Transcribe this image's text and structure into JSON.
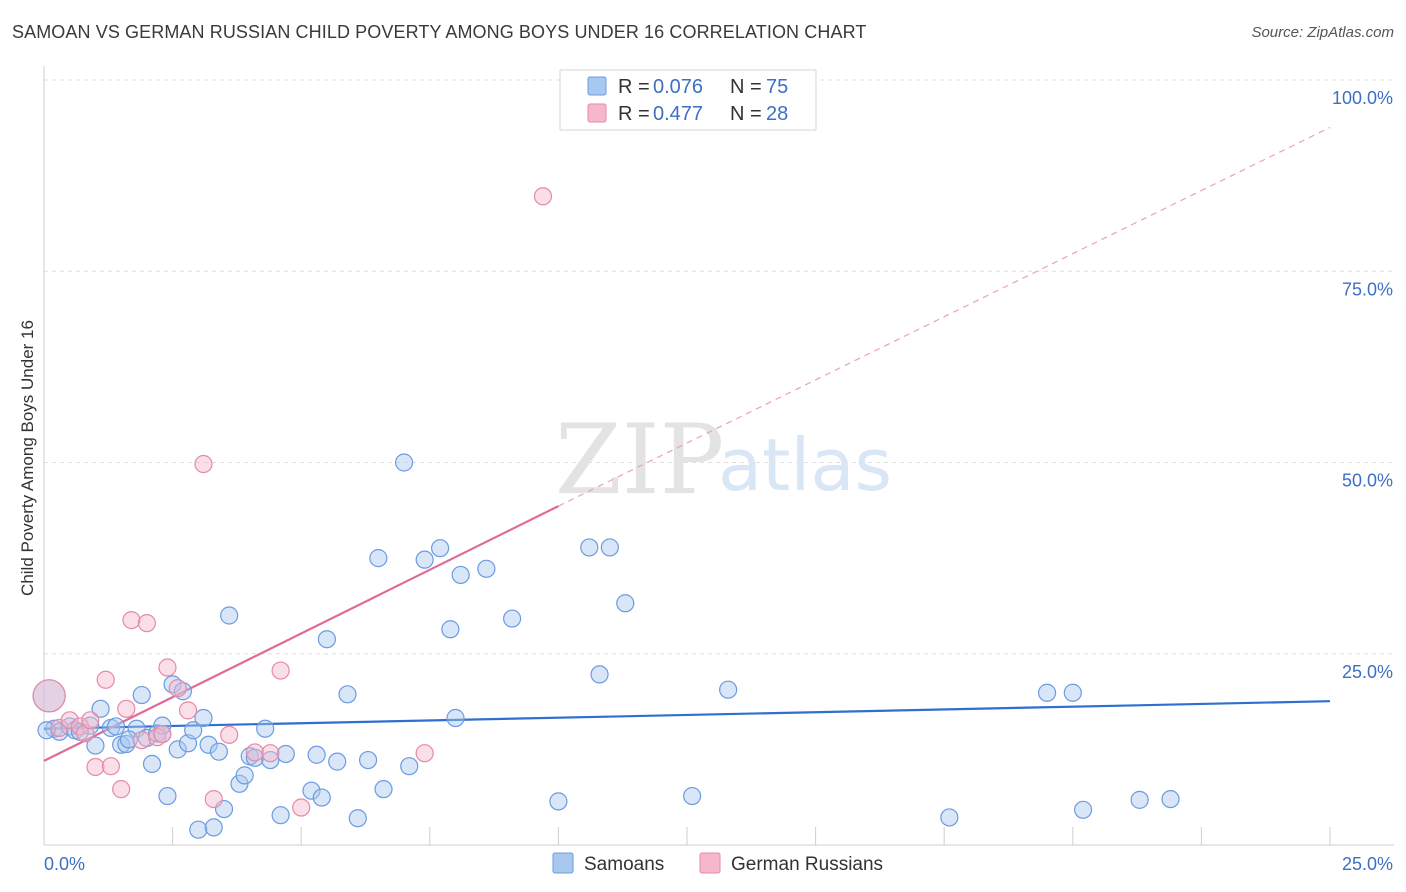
{
  "header": {
    "title": "SAMOAN VS GERMAN RUSSIAN CHILD POVERTY AMONG BOYS UNDER 16 CORRELATION CHART",
    "source": "Source: ZipAtlas.com"
  },
  "watermark": {
    "part1": "ZIP",
    "part2": "atlas"
  },
  "legend": {
    "rows": [
      {
        "r_label": "R = ",
        "r_value": "0.076",
        "n_label": "N = ",
        "n_value": "75",
        "color": "#a9c8ef"
      },
      {
        "r_label": "R = ",
        "r_value": "0.477",
        "n_label": "N = ",
        "n_value": "28",
        "color": "#f5b8cb"
      }
    ]
  },
  "chart_data": {
    "type": "scatter",
    "title": "SAMOAN VS GERMAN RUSSIAN CHILD POVERTY AMONG BOYS UNDER 16 CORRELATION CHART",
    "xlabel": "",
    "ylabel": "Child Poverty Among Boys Under 16",
    "xlim": [
      0,
      25
    ],
    "ylim": [
      0,
      100
    ],
    "x_tick_labels": [
      "0.0%",
      "25.0%"
    ],
    "y_tick_labels": [
      "100.0%",
      "75.0%",
      "50.0%",
      "25.0%"
    ],
    "y_ticks": [
      100,
      75,
      50,
      25
    ],
    "grid": true,
    "legend_position": "top-center",
    "series": [
      {
        "name": "Samoans",
        "color": "#a9c8ef",
        "stroke": "#6b9be0",
        "trend": {
          "x": [
            0,
            25
          ],
          "y": [
            15.2,
            18.8
          ],
          "color": "#2f6fcd"
        },
        "points": [
          [
            0.1,
            19.5
          ],
          [
            0.2,
            15.2
          ],
          [
            0.3,
            14.8
          ],
          [
            0.5,
            15.5
          ],
          [
            0.6,
            15
          ],
          [
            0.7,
            14.8
          ],
          [
            0.9,
            15.6
          ],
          [
            1.0,
            13
          ],
          [
            1.1,
            17.8
          ],
          [
            1.3,
            15.3
          ],
          [
            1.4,
            15.5
          ],
          [
            1.5,
            13.1
          ],
          [
            1.6,
            13.2
          ],
          [
            1.8,
            15.2
          ],
          [
            1.9,
            19.6
          ],
          [
            2.0,
            14.0
          ],
          [
            2.1,
            10.6
          ],
          [
            2.2,
            14.6
          ],
          [
            2.3,
            14.5
          ],
          [
            2.3,
            15.6
          ],
          [
            2.4,
            6.4
          ],
          [
            2.5,
            21.0
          ],
          [
            2.6,
            12.5
          ],
          [
            2.7,
            20.1
          ],
          [
            2.8,
            13.3
          ],
          [
            2.9,
            15.0
          ],
          [
            3.0,
            2.0
          ],
          [
            3.1,
            16.6
          ],
          [
            3.2,
            13.1
          ],
          [
            3.3,
            2.3
          ],
          [
            3.4,
            12.2
          ],
          [
            3.5,
            4.7
          ],
          [
            3.6,
            30.0
          ],
          [
            3.8,
            8.0
          ],
          [
            3.9,
            9.1
          ],
          [
            4.0,
            11.6
          ],
          [
            4.1,
            11.4
          ],
          [
            4.3,
            15.2
          ],
          [
            4.4,
            11.1
          ],
          [
            4.6,
            3.9
          ],
          [
            4.7,
            11.9
          ],
          [
            5.2,
            7.1
          ],
          [
            5.4,
            6.2
          ],
          [
            5.3,
            11.8
          ],
          [
            5.5,
            26.9
          ],
          [
            5.7,
            10.9
          ],
          [
            5.9,
            19.7
          ],
          [
            6.1,
            3.5
          ],
          [
            6.3,
            11.1
          ],
          [
            6.5,
            37.5
          ],
          [
            6.6,
            7.3
          ],
          [
            7.0,
            50.0
          ],
          [
            7.1,
            10.3
          ],
          [
            7.4,
            37.3
          ],
          [
            7.7,
            38.8
          ],
          [
            7.9,
            28.2
          ],
          [
            8.1,
            35.3
          ],
          [
            8.0,
            16.6
          ],
          [
            8.6,
            36.1
          ],
          [
            9.1,
            29.6
          ],
          [
            10.0,
            5.7
          ],
          [
            10.6,
            38.9
          ],
          [
            10.8,
            22.3
          ],
          [
            11.0,
            38.9
          ],
          [
            11.3,
            31.6
          ],
          [
            12.6,
            6.4
          ],
          [
            13.3,
            20.3
          ],
          [
            17.6,
            3.6
          ],
          [
            19.5,
            19.9
          ],
          [
            20.0,
            19.9
          ],
          [
            20.2,
            4.6
          ],
          [
            21.3,
            5.9
          ],
          [
            21.9,
            6.0
          ],
          [
            0.05,
            15.0
          ],
          [
            1.65,
            13.8
          ]
        ]
      },
      {
        "name": "German Russians",
        "color": "#f5b8cb",
        "stroke": "#e68aa7",
        "trend": {
          "x": [
            0,
            10
          ],
          "y": [
            11.0,
            44.3
          ],
          "dash_to": [
            25,
            93.8
          ],
          "color": "#e06b96"
        },
        "points": [
          [
            0.1,
            19.5
          ],
          [
            0.3,
            15.3
          ],
          [
            0.5,
            16.3
          ],
          [
            0.7,
            15.5
          ],
          [
            0.8,
            14.6
          ],
          [
            0.9,
            16.3
          ],
          [
            1.0,
            10.2
          ],
          [
            1.2,
            21.6
          ],
          [
            1.3,
            10.3
          ],
          [
            1.5,
            7.3
          ],
          [
            1.6,
            17.8
          ],
          [
            1.7,
            29.4
          ],
          [
            1.9,
            13.7
          ],
          [
            2.0,
            29.0
          ],
          [
            2.2,
            14.1
          ],
          [
            2.3,
            14.5
          ],
          [
            2.4,
            23.2
          ],
          [
            2.6,
            20.5
          ],
          [
            2.8,
            17.6
          ],
          [
            3.1,
            49.8
          ],
          [
            3.3,
            6.0
          ],
          [
            3.6,
            14.4
          ],
          [
            4.1,
            12.1
          ],
          [
            4.4,
            12.0
          ],
          [
            4.6,
            22.8
          ],
          [
            5.0,
            4.9
          ],
          [
            7.4,
            12.0
          ],
          [
            9.7,
            84.8
          ]
        ]
      }
    ]
  }
}
